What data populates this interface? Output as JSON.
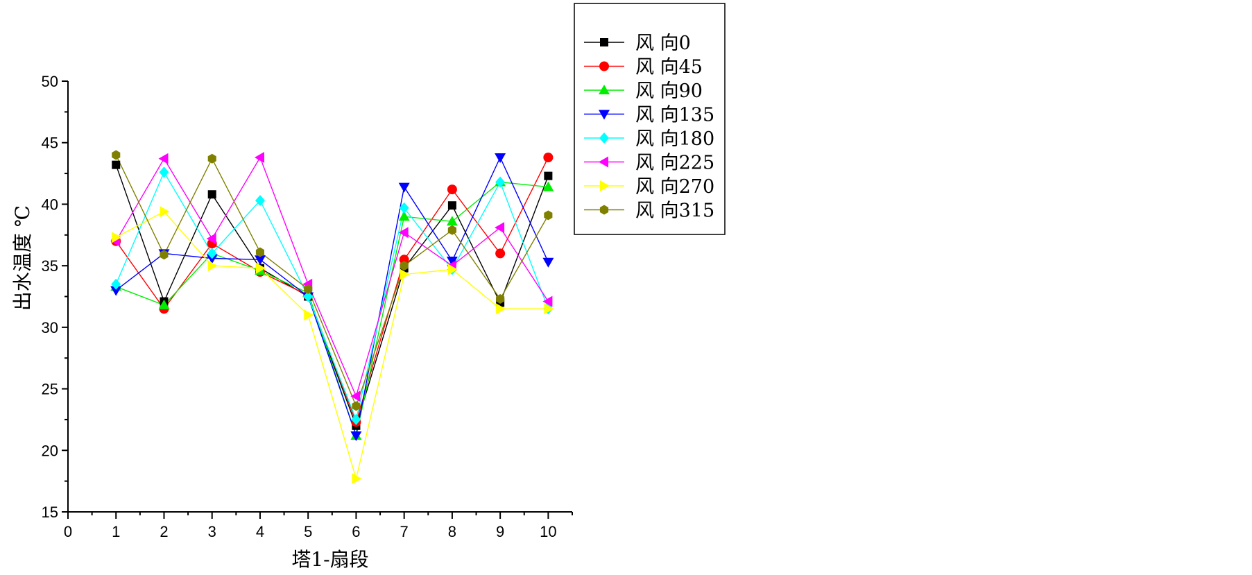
{
  "chart_data": {
    "type": "line",
    "title": "",
    "xlabel": "塔1-扇段",
    "ylabel": "出水温度 ℃",
    "xlim": [
      0,
      10.5
    ],
    "ylim": [
      15,
      50
    ],
    "xticks": [
      0,
      1,
      2,
      3,
      4,
      5,
      6,
      7,
      8,
      9,
      10
    ],
    "yticks": [
      15,
      20,
      25,
      30,
      35,
      40,
      45,
      50
    ],
    "grid": false,
    "legend_position": "top-right",
    "x": [
      1,
      2,
      3,
      4,
      5,
      6,
      7,
      8,
      9,
      10
    ],
    "series": [
      {
        "name": "风  向0",
        "color": "#000000",
        "marker": "square",
        "values": [
          43.2,
          32.1,
          40.8,
          34.8,
          32.5,
          22.0,
          34.8,
          39.9,
          32.0,
          42.3
        ]
      },
      {
        "name": "风  向45",
        "color": "#ff0000",
        "marker": "circle",
        "values": [
          37.0,
          31.5,
          36.8,
          34.5,
          32.6,
          22.3,
          35.5,
          41.2,
          36.0,
          43.8
        ]
      },
      {
        "name": "风  向90",
        "color": "#00ee00",
        "marker": "triangle-up",
        "values": [
          33.3,
          31.8,
          36.0,
          34.6,
          32.8,
          21.2,
          39.0,
          38.6,
          41.8,
          41.4
        ]
      },
      {
        "name": "风  向135",
        "color": "#0000ff",
        "marker": "triangle-down",
        "values": [
          33.0,
          36.0,
          35.6,
          35.5,
          32.5,
          21.2,
          41.4,
          35.4,
          43.8,
          35.3
        ]
      },
      {
        "name": "风  向180",
        "color": "#00ffff",
        "marker": "diamond",
        "values": [
          33.5,
          42.6,
          36.0,
          40.3,
          32.5,
          22.5,
          39.7,
          34.7,
          41.8,
          31.5
        ]
      },
      {
        "name": "风  向225",
        "color": "#ff00ff",
        "marker": "triangle-left",
        "values": [
          37.0,
          43.7,
          37.2,
          43.8,
          33.5,
          24.4,
          37.7,
          35.0,
          38.1,
          32.1
        ]
      },
      {
        "name": "风  向270",
        "color": "#ffff00",
        "marker": "triangle-right",
        "values": [
          37.3,
          39.4,
          35.0,
          34.8,
          31.0,
          17.7,
          34.3,
          34.7,
          31.5,
          31.5
        ]
      },
      {
        "name": "风  向315",
        "color": "#808000",
        "marker": "hexagon",
        "values": [
          44.0,
          35.9,
          43.7,
          36.1,
          33.1,
          23.6,
          35.0,
          37.9,
          32.3,
          39.1
        ]
      }
    ]
  }
}
